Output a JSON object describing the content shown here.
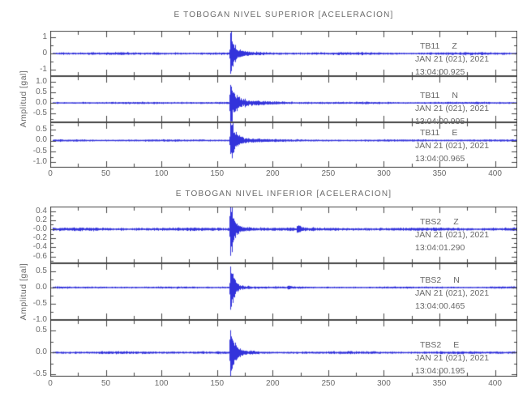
{
  "colors": {
    "background": "#ffffff",
    "trace": "#2222d8",
    "axis": "#444444",
    "text": "#6a6a6a"
  },
  "chart_data": [
    {
      "type": "line",
      "title": "E TOBOGAN NIVEL SUPERIOR [ACELERACION]",
      "ylabel": "Amplitud [gal]",
      "xlim": [
        0,
        420
      ],
      "x_tick_values": [
        0,
        50,
        100,
        150,
        200,
        250,
        300,
        350,
        400
      ],
      "x_tick_labels": [
        "0",
        "50",
        "100",
        "150",
        "200",
        "250",
        "300",
        "350",
        "400"
      ],
      "x_minor_step": 25,
      "grid": false,
      "legend": "none",
      "traces": [
        {
          "station": "TB11",
          "component": "Z",
          "date": "JAN 21 (021), 2021",
          "time": "13:04:00.925",
          "ylim": [
            -1.4,
            1.4
          ],
          "y_tick_values": [
            1,
            0,
            -1
          ],
          "y_tick_labels": [
            "1",
            "0",
            "-1"
          ],
          "y_minor_step": 0.5,
          "waveform": {
            "noise_amp": 0.08,
            "event_onset_x": 162,
            "peak_amp": 1.5,
            "spike_decay": 3,
            "coda_amp": 0.38,
            "coda_decay": 10,
            "blips": []
          }
        },
        {
          "station": "TB11",
          "component": "N",
          "date": "JAN 21 (021), 2021",
          "time": "13:04:00.995",
          "ylim": [
            -0.9,
            1.25
          ],
          "y_tick_values": [
            1.0,
            0.5,
            0.0,
            -0.5
          ],
          "y_tick_labels": [
            "1.0",
            "0.5",
            "0.0",
            "-0.5"
          ],
          "y_minor_step": 0.25,
          "waveform": {
            "noise_amp": 0.05,
            "event_onset_x": 162,
            "peak_amp": 1.35,
            "spike_decay": 3,
            "coda_amp": 0.3,
            "coda_decay": 20,
            "blips": []
          }
        },
        {
          "station": "TB11",
          "component": "E",
          "date": "JAN 21 (021), 2021",
          "time": "13:04:00.965",
          "ylim": [
            -1.25,
            0.85
          ],
          "y_tick_values": [
            0.5,
            0.0,
            -0.5,
            -1.0
          ],
          "y_tick_labels": [
            "0.5",
            "0.0",
            "-0.5",
            "-1.0"
          ],
          "y_minor_step": 0.25,
          "waveform": {
            "noise_amp": 0.05,
            "event_onset_x": 162,
            "peak_amp": 1.35,
            "spike_decay": 3,
            "coda_amp": 0.3,
            "coda_decay": 14,
            "blips": []
          }
        }
      ]
    },
    {
      "type": "line",
      "title": "E TOBOGAN NIVEL INFERIOR [ACELERACION]",
      "ylabel": "Amplitud [gal]",
      "xlim": [
        0,
        420
      ],
      "x_tick_values": [
        0,
        50,
        100,
        150,
        200,
        250,
        300,
        350,
        400
      ],
      "x_tick_labels": [
        "0",
        "50",
        "100",
        "150",
        "200",
        "250",
        "300",
        "350",
        "400"
      ],
      "x_minor_step": 25,
      "grid": false,
      "legend": "none",
      "traces": [
        {
          "station": "TBS2",
          "component": "Z",
          "date": "JAN 21 (021), 2021",
          "time": "13:04:01.290",
          "ylim": [
            -0.75,
            0.5
          ],
          "y_tick_values": [
            0.4,
            0.2,
            0.0,
            -0.2,
            -0.4,
            -0.6
          ],
          "y_tick_labels": [
            "0.4",
            "0.2",
            "-0.0",
            "-0.2",
            "-0.4",
            "-0.6"
          ],
          "y_minor_step": 0.1,
          "waveform": {
            "noise_amp": 0.035,
            "event_onset_x": 162,
            "peak_amp": 0.85,
            "spike_decay": 2.5,
            "coda_amp": 0.12,
            "coda_decay": 10,
            "blips": [
              {
                "x": 222,
                "amp": 0.1,
                "decay": 3
              }
            ]
          }
        },
        {
          "station": "TBS2",
          "component": "N",
          "date": "JAN 21 (021), 2021",
          "time": "13:04:00.465",
          "ylim": [
            -1.0,
            0.75
          ],
          "y_tick_values": [
            0.5,
            0.0,
            -0.5,
            -1.0
          ],
          "y_tick_labels": [
            "0.5",
            "0.0",
            "-0.5",
            "-1.0"
          ],
          "y_minor_step": 0.25,
          "waveform": {
            "noise_amp": 0.032,
            "event_onset_x": 162,
            "peak_amp": 1.15,
            "spike_decay": 2.5,
            "coda_amp": 0.14,
            "coda_decay": 9,
            "blips": [
              {
                "x": 214,
                "amp": 0.07,
                "decay": 2
              }
            ]
          }
        },
        {
          "station": "TBS2",
          "component": "E",
          "date": "JAN 21 (021), 2021",
          "time": "13:04:00.195",
          "ylim": [
            -0.55,
            0.75
          ],
          "y_tick_values": [
            0.5,
            0.0,
            -0.5
          ],
          "y_tick_labels": [
            "0.5",
            "0.0",
            "-0.5"
          ],
          "y_minor_step": 0.25,
          "waveform": {
            "noise_amp": 0.03,
            "event_onset_x": 162,
            "peak_amp": 1.05,
            "spike_decay": 2.5,
            "coda_amp": 0.12,
            "coda_decay": 9,
            "blips": []
          }
        }
      ]
    }
  ]
}
